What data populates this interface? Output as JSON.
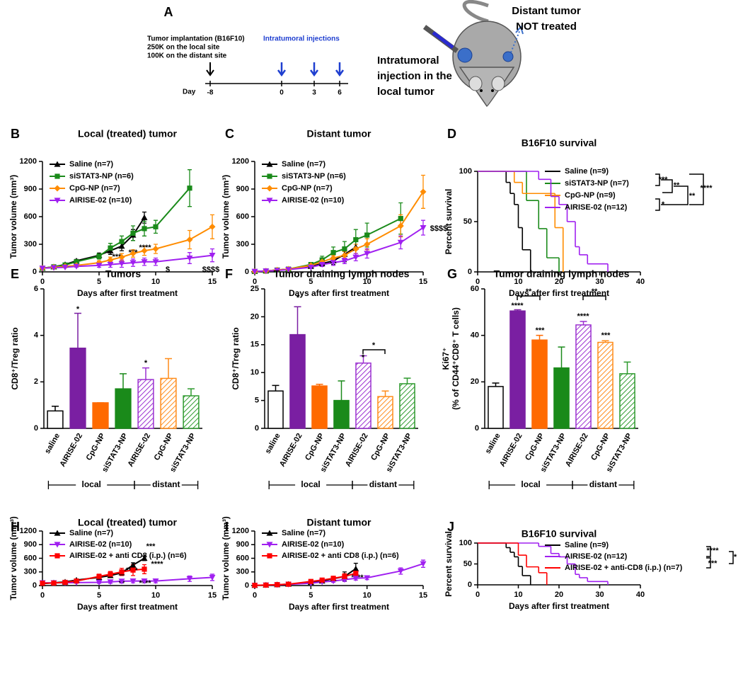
{
  "diagram": {
    "panel": "A",
    "implantation": [
      "Tumor implantation (B16F10)",
      "250K on the local site",
      "100K on the distant site"
    ],
    "injections": "Intratumoral injections",
    "day_label": "Day",
    "days": [
      "-8",
      "0",
      "3",
      "6"
    ],
    "distant_note": [
      "Distant tumor",
      "NOT treated"
    ],
    "local_note": [
      "Intratumoral",
      "injection in the",
      "local tumor"
    ]
  },
  "chart_data": [
    {
      "type": "line",
      "panel": "B",
      "title": "Local (treated) tumor",
      "xlabel": "Days after first treatment",
      "ylabel": "Tumor volume (mm³)",
      "x": [
        0,
        1,
        2,
        3,
        5,
        6,
        7,
        8,
        9,
        10,
        13,
        15
      ],
      "xlim": [
        0,
        15
      ],
      "xticks": [
        0,
        5,
        10,
        15
      ],
      "ylim": [
        0,
        1200
      ],
      "yticks": [
        0,
        300,
        600,
        900,
        1200
      ],
      "series": [
        {
          "name": "Saline (n=7)",
          "color": "#000000",
          "marker": "triangle",
          "values": [
            40,
            55,
            80,
            120,
            180,
            230,
            280,
            400,
            590,
            null,
            null,
            null
          ],
          "errors": [
            5,
            8,
            10,
            15,
            25,
            40,
            50,
            60,
            60,
            null,
            null,
            null
          ]
        },
        {
          "name": "siSTAT3-NP (n=6)",
          "color": "#1a8a1a",
          "marker": "square",
          "values": [
            40,
            55,
            75,
            110,
            170,
            260,
            330,
            420,
            470,
            490,
            910,
            null
          ],
          "errors": [
            5,
            8,
            10,
            15,
            30,
            50,
            60,
            80,
            80,
            70,
            200,
            null
          ]
        },
        {
          "name": "CpG-NP (n=7)",
          "color": "#ff8c00",
          "marker": "diamond",
          "values": [
            40,
            50,
            60,
            70,
            100,
            130,
            160,
            200,
            230,
            250,
            350,
            490
          ],
          "errors": [
            5,
            5,
            10,
            10,
            20,
            30,
            40,
            40,
            50,
            50,
            100,
            130
          ]
        },
        {
          "name": "AIRISE-02 (n=10)",
          "color": "#a020f0",
          "marker": "triangle-down",
          "values": [
            40,
            45,
            50,
            60,
            70,
            80,
            90,
            100,
            110,
            110,
            150,
            180
          ],
          "errors": [
            5,
            5,
            5,
            10,
            20,
            30,
            40,
            40,
            40,
            40,
            60,
            70
          ]
        }
      ],
      "annotations": [
        "***",
        "***",
        "****",
        "$",
        "$$$$"
      ]
    },
    {
      "type": "line",
      "panel": "C",
      "title": "Distant tumor",
      "xlabel": "Days after first treatment",
      "ylabel": "Tumor volume (mm³)",
      "x": [
        0,
        1,
        2,
        3,
        5,
        6,
        7,
        8,
        9,
        10,
        13,
        15
      ],
      "xlim": [
        0,
        15
      ],
      "xticks": [
        0,
        5,
        10,
        15
      ],
      "ylim": [
        0,
        1200
      ],
      "yticks": [
        0,
        300,
        600,
        900,
        1200
      ],
      "series": [
        {
          "name": "Saline (n=7)",
          "color": "#000000",
          "marker": "triangle",
          "values": [
            5,
            10,
            20,
            30,
            60,
            90,
            120,
            190,
            270,
            null,
            null,
            null
          ],
          "errors": [
            3,
            5,
            5,
            10,
            15,
            30,
            40,
            80,
            100,
            null,
            null,
            null
          ]
        },
        {
          "name": "siSTAT3-NP (n=6)",
          "color": "#1a8a1a",
          "marker": "square",
          "values": [
            5,
            10,
            20,
            30,
            80,
            130,
            210,
            250,
            350,
            400,
            580,
            null
          ],
          "errors": [
            3,
            5,
            5,
            10,
            20,
            40,
            60,
            80,
            110,
            130,
            170,
            null
          ]
        },
        {
          "name": "CpG-NP (n=7)",
          "color": "#ff8c00",
          "marker": "diamond",
          "values": [
            5,
            10,
            20,
            30,
            70,
            110,
            150,
            180,
            250,
            300,
            500,
            870
          ],
          "errors": [
            3,
            5,
            5,
            10,
            15,
            25,
            30,
            40,
            50,
            60,
            120,
            180
          ]
        },
        {
          "name": "AIRISE-02 (n=10)",
          "color": "#a020f0",
          "marker": "triangle-down",
          "values": [
            5,
            10,
            15,
            25,
            50,
            80,
            100,
            120,
            160,
            200,
            320,
            480
          ],
          "errors": [
            3,
            5,
            5,
            5,
            10,
            20,
            30,
            30,
            40,
            50,
            70,
            80
          ]
        }
      ],
      "annotations": [
        "*",
        "$$$$"
      ]
    },
    {
      "type": "step",
      "panel": "D",
      "title": "B16F10 survival",
      "xlabel": "Days after first treatment",
      "ylabel": "Percent survival",
      "xlim": [
        0,
        40
      ],
      "xticks": [
        0,
        10,
        20,
        30,
        40
      ],
      "ylim": [
        0,
        100
      ],
      "yticks": [
        0,
        50,
        100
      ],
      "series": [
        {
          "name": "Saline (n=9)",
          "color": "#000000",
          "x": [
            0,
            7,
            8,
            9,
            10,
            11,
            13
          ],
          "values": [
            100,
            89,
            78,
            67,
            44,
            22,
            0
          ]
        },
        {
          "name": "siSTAT3-NP (n=7)",
          "color": "#1a8a1a",
          "x": [
            0,
            12,
            15,
            17,
            20
          ],
          "values": [
            100,
            71,
            43,
            14,
            0
          ]
        },
        {
          "name": "CpG-NP (n=9)",
          "color": "#ff8c00",
          "x": [
            0,
            9,
            11,
            19,
            21
          ],
          "values": [
            100,
            89,
            78,
            44,
            0
          ]
        },
        {
          "name": "AIRISE-02 (n=12)",
          "color": "#a020f0",
          "x": [
            0,
            15,
            18,
            20,
            22,
            24,
            25,
            27,
            32
          ],
          "values": [
            100,
            92,
            75,
            67,
            50,
            25,
            17,
            8,
            0
          ]
        }
      ],
      "annotations": [
        "***",
        "**",
        "*",
        "**",
        "****"
      ]
    },
    {
      "type": "bar",
      "panel": "E",
      "title": "Tumors",
      "ylabel": "CD8⁺/Treg ratio",
      "categories": [
        "saline",
        "AIRISE-02",
        "CpG-NP",
        "siSTAT3-NP",
        "AIRISE-02",
        "CpG-NP",
        "siSTAT3-NP"
      ],
      "values": [
        0.75,
        3.45,
        1.1,
        1.7,
        2.1,
        2.15,
        1.4
      ],
      "errors": [
        0.2,
        1.5,
        0,
        0.65,
        0.5,
        0.85,
        0.3
      ],
      "colors": [
        "#ffffff",
        "#7a1fa2",
        "#ff6a00",
        "#1a8a1a",
        "#9b30d0",
        "#ff8c1a",
        "#2e9a2e"
      ],
      "hatched": [
        false,
        false,
        false,
        false,
        true,
        true,
        true
      ],
      "groups": [
        "local",
        "distant"
      ],
      "ylim": [
        0,
        6
      ],
      "yticks": [
        0,
        2,
        4,
        6
      ],
      "annotations": [
        "*",
        "*"
      ]
    },
    {
      "type": "bar",
      "panel": "F",
      "title": "Tumor draining lymph nodes",
      "ylabel": "CD8⁺/Treg ratio",
      "categories": [
        "saline",
        "AIRISE-02",
        "CpG-NP",
        "siSTAT3-NP",
        "AIRISE-02",
        "CpG-NP",
        "siSTAT3-NP"
      ],
      "values": [
        6.7,
        16.8,
        7.6,
        5.0,
        11.7,
        5.7,
        8.0
      ],
      "errors": [
        1,
        5,
        0.3,
        3.5,
        1.3,
        1,
        1
      ],
      "colors": [
        "#ffffff",
        "#7a1fa2",
        "#ff6a00",
        "#1a8a1a",
        "#9b30d0",
        "#ff8c1a",
        "#2e9a2e"
      ],
      "hatched": [
        false,
        false,
        false,
        false,
        true,
        true,
        true
      ],
      "groups": [
        "local",
        "distant"
      ],
      "ylim": [
        0,
        25
      ],
      "yticks": [
        0,
        5,
        10,
        15,
        20,
        25
      ],
      "annotations": [
        "*",
        "*",
        "*"
      ]
    },
    {
      "type": "bar",
      "panel": "G",
      "title": "Tumor draining lymph nodes",
      "ylabel": [
        "Ki67⁺",
        "(% of CD44⁺CD8⁺ T cells)"
      ],
      "categories": [
        "saline",
        "AIRISE-02",
        "CpG-NP",
        "siSTAT3-NP",
        "AIRISE-02",
        "CpG-NP",
        "siSTAT3-NP"
      ],
      "values": [
        18,
        50.5,
        38,
        26,
        44.5,
        37,
        23.5
      ],
      "errors": [
        1.5,
        0.5,
        2,
        9,
        1.5,
        0.7,
        5
      ],
      "colors": [
        "#ffffff",
        "#7a1fa2",
        "#ff6a00",
        "#1a8a1a",
        "#9b30d0",
        "#ff8c1a",
        "#2e9a2e"
      ],
      "hatched": [
        false,
        false,
        false,
        false,
        true,
        true,
        true
      ],
      "groups": [
        "local",
        "distant"
      ],
      "ylim": [
        0,
        60
      ],
      "yticks": [
        0,
        20,
        40,
        60
      ],
      "annotations": [
        "****",
        "***",
        "****",
        "***",
        "**",
        "**"
      ]
    },
    {
      "type": "line",
      "panel": "H",
      "title": "Local (treated) tumor",
      "xlabel": "Days after first treatment",
      "ylabel": "Tumor volume (mm³)",
      "x": [
        0,
        1,
        2,
        3,
        5,
        6,
        7,
        8,
        9,
        10,
        13,
        15
      ],
      "xlim": [
        0,
        15
      ],
      "xticks": [
        0,
        5,
        10,
        15
      ],
      "ylim": [
        0,
        1200
      ],
      "yticks": [
        0,
        300,
        600,
        900,
        1200
      ],
      "series": [
        {
          "name": "Saline (n=7)",
          "color": "#000000",
          "marker": "triangle",
          "values": [
            40,
            60,
            80,
            120,
            180,
            220,
            280,
            450,
            600,
            null,
            null,
            null
          ],
          "errors": [
            5,
            10,
            15,
            20,
            30,
            40,
            50,
            50,
            50,
            null,
            null,
            null
          ]
        },
        {
          "name": "AIRISE-02 (n=10)",
          "color": "#a020f0",
          "marker": "triangle-down",
          "values": [
            60,
            60,
            60,
            65,
            70,
            80,
            95,
            100,
            100,
            100,
            150,
            180
          ],
          "errors": [
            5,
            5,
            5,
            10,
            20,
            30,
            40,
            40,
            40,
            40,
            60,
            70
          ]
        },
        {
          "name": "AIRISE-02 + anti CD8 (i.p.) (n=6)",
          "color": "#ff0000",
          "marker": "square",
          "values": [
            50,
            55,
            70,
            100,
            200,
            250,
            300,
            340,
            360,
            null,
            null,
            null
          ],
          "errors": [
            5,
            10,
            15,
            20,
            50,
            60,
            80,
            120,
            100,
            null,
            null,
            null
          ]
        }
      ],
      "annotations": [
        "***",
        "****",
        "****",
        "**",
        "****"
      ]
    },
    {
      "type": "line",
      "panel": "I",
      "title": "Distant tumor",
      "xlabel": "Days after first treatment",
      "ylabel": "Tumor volume (mm³)",
      "x": [
        0,
        1,
        2,
        3,
        5,
        6,
        7,
        8,
        9,
        10,
        13,
        15
      ],
      "xlim": [
        0,
        15
      ],
      "xticks": [
        0,
        5,
        10,
        15
      ],
      "ylim": [
        0,
        1200
      ],
      "yticks": [
        0,
        300,
        600,
        900,
        1200
      ],
      "series": [
        {
          "name": "Saline (n=7)",
          "color": "#000000",
          "marker": "triangle",
          "values": [
            5,
            10,
            20,
            30,
            70,
            100,
            150,
            200,
            370,
            null,
            null,
            null
          ],
          "errors": [
            3,
            5,
            5,
            10,
            20,
            30,
            50,
            100,
            120,
            null,
            null,
            null
          ]
        },
        {
          "name": "AIRISE-02 (n=10)",
          "color": "#a020f0",
          "marker": "triangle-down",
          "values": [
            5,
            10,
            15,
            25,
            50,
            80,
            100,
            130,
            160,
            170,
            320,
            480
          ],
          "errors": [
            3,
            5,
            5,
            5,
            10,
            20,
            30,
            40,
            40,
            40,
            70,
            80
          ]
        },
        {
          "name": "AIRISE-02 + anti CD8 (i.p.) (n=6)",
          "color": "#ff0000",
          "marker": "square",
          "values": [
            5,
            10,
            20,
            30,
            90,
            120,
            160,
            200,
            270,
            null,
            null,
            null
          ],
          "errors": [
            3,
            5,
            5,
            10,
            20,
            30,
            40,
            60,
            80,
            null,
            null,
            null
          ]
        }
      ],
      "annotations": [
        "*",
        "****"
      ]
    },
    {
      "type": "step",
      "panel": "J",
      "title": "B16F10 survival",
      "xlabel": "Days after first treatment",
      "ylabel": "Percent survival",
      "xlim": [
        0,
        40
      ],
      "xticks": [
        0,
        10,
        20,
        30,
        40
      ],
      "ylim": [
        0,
        100
      ],
      "yticks": [
        0,
        50,
        100
      ],
      "series": [
        {
          "name": "Saline (n=9)",
          "color": "#000000",
          "x": [
            0,
            7,
            8,
            9,
            10,
            11,
            13
          ],
          "values": [
            100,
            89,
            78,
            67,
            44,
            22,
            0
          ]
        },
        {
          "name": "AIRISE-02 (n=12)",
          "color": "#a020f0",
          "x": [
            0,
            15,
            18,
            20,
            22,
            24,
            25,
            27,
            32
          ],
          "values": [
            100,
            92,
            75,
            67,
            50,
            25,
            17,
            8,
            0
          ]
        },
        {
          "name": "AIRISE-02 + anti-CD8 (i.p.) (n=7)",
          "color": "#ff0000",
          "x": [
            0,
            10,
            12,
            15,
            17
          ],
          "values": [
            100,
            71,
            43,
            29,
            0
          ]
        }
      ],
      "annotations": [
        "****",
        "***",
        "*"
      ]
    }
  ]
}
